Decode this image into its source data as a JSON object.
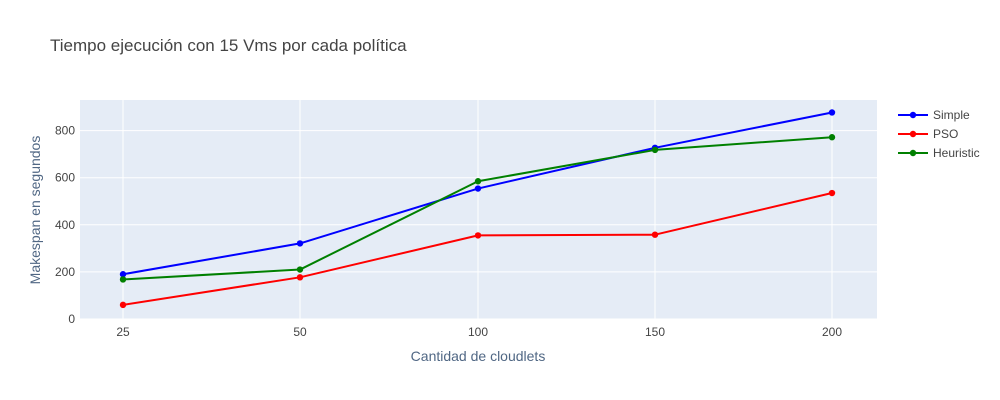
{
  "chart_data": {
    "type": "line",
    "title": "Tiempo ejecución con 15 Vms por cada política",
    "xlabel": "Cantidad de cloudlets",
    "ylabel": "Makespan en segundos",
    "x": [
      25,
      50,
      100,
      150,
      200
    ],
    "x_ticks": [
      "25",
      "50",
      "100",
      "150",
      "200"
    ],
    "y_ticks": [
      0,
      200,
      400,
      600,
      800
    ],
    "ylim": [
      0,
      930
    ],
    "grid": true,
    "legend_position": "top-right",
    "series": [
      {
        "name": "Simple",
        "color": "#0000ff",
        "values": [
          190,
          321,
          554,
          727,
          877
        ]
      },
      {
        "name": "PSO",
        "color": "#ff0000",
        "values": [
          60,
          177,
          355,
          358,
          535
        ]
      },
      {
        "name": "Heuristic",
        "color": "#008000",
        "values": [
          168,
          210,
          585,
          718,
          772
        ]
      }
    ]
  }
}
